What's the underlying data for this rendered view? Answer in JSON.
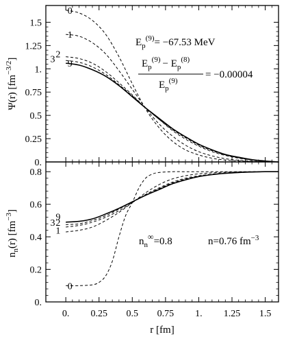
{
  "chart_data": [
    {
      "type": "line",
      "panel": "top",
      "ylabel": "Ψ(r)  [fm",
      "ylabel_exp": "−3/2",
      "ylabel_close": "]",
      "xlim": [
        -0.15,
        1.6
      ],
      "ylim": [
        0,
        1.68
      ],
      "grid": false,
      "yticks": [
        0,
        0.25,
        0.5,
        0.75,
        1.0,
        1.25,
        1.5
      ],
      "ytick_labels": [
        "0.",
        "0.25",
        "0.5",
        "0.75",
        "1.",
        "1.25",
        "1.5"
      ],
      "series": [
        {
          "name": "0",
          "style": "dashed",
          "x": [
            0,
            0.1,
            0.2,
            0.3,
            0.4,
            0.5,
            0.6,
            0.7,
            0.8,
            0.9,
            1.0,
            1.1,
            1.2,
            1.3,
            1.4,
            1.5,
            1.6
          ],
          "values": [
            1.63,
            1.6,
            1.52,
            1.37,
            1.13,
            0.84,
            0.57,
            0.37,
            0.225,
            0.13,
            0.075,
            0.04,
            0.02,
            0.01,
            0.005,
            0.002,
            0
          ]
        },
        {
          "name": "1",
          "style": "dashed",
          "x": [
            0,
            0.1,
            0.2,
            0.3,
            0.4,
            0.5,
            0.6,
            0.7,
            0.8,
            0.9,
            1.0,
            1.1,
            1.2,
            1.3,
            1.4,
            1.5,
            1.6
          ],
          "values": [
            1.37,
            1.35,
            1.28,
            1.16,
            0.98,
            0.78,
            0.58,
            0.41,
            0.28,
            0.18,
            0.11,
            0.065,
            0.035,
            0.018,
            0.008,
            0.003,
            0
          ]
        },
        {
          "name": "2",
          "style": "dashed",
          "x": [
            0,
            0.1,
            0.2,
            0.3,
            0.4,
            0.5,
            0.6,
            0.7,
            0.8,
            0.9,
            1.0,
            1.1,
            1.2,
            1.3,
            1.4,
            1.5,
            1.6
          ],
          "values": [
            1.13,
            1.11,
            1.06,
            0.97,
            0.85,
            0.72,
            0.58,
            0.46,
            0.34,
            0.245,
            0.17,
            0.11,
            0.07,
            0.04,
            0.02,
            0.008,
            0
          ]
        },
        {
          "name": "3",
          "style": "dashed",
          "x": [
            0,
            0.1,
            0.2,
            0.3,
            0.4,
            0.5,
            0.6,
            0.7,
            0.8,
            0.9,
            1.0,
            1.1,
            1.2,
            1.3,
            1.4,
            1.5,
            1.6
          ],
          "values": [
            1.09,
            1.07,
            1.02,
            0.94,
            0.83,
            0.71,
            0.58,
            0.46,
            0.35,
            0.26,
            0.18,
            0.12,
            0.075,
            0.045,
            0.022,
            0.009,
            0
          ]
        },
        {
          "name": "9",
          "style": "solid",
          "x": [
            0,
            0.1,
            0.2,
            0.3,
            0.4,
            0.5,
            0.6,
            0.7,
            0.8,
            0.9,
            1.0,
            1.1,
            1.2,
            1.3,
            1.4,
            1.5,
            1.6
          ],
          "values": [
            1.06,
            1.04,
            0.99,
            0.92,
            0.82,
            0.7,
            0.58,
            0.47,
            0.36,
            0.27,
            0.19,
            0.13,
            0.08,
            0.05,
            0.025,
            0.01,
            0
          ]
        }
      ],
      "curve_labels": [
        {
          "text": "0",
          "series": "0"
        },
        {
          "text": "1",
          "series": "1"
        },
        {
          "text": "2",
          "series": "2"
        },
        {
          "text": "3",
          "series": "3"
        },
        {
          "text": "9",
          "series": "9"
        }
      ]
    },
    {
      "type": "line",
      "panel": "bottom",
      "xlabel": "r  [fm]",
      "ylabel": "n",
      "ylabel_sub": "n",
      "ylabel_rest": "(r)  [fm",
      "ylabel_exp": "−3",
      "ylabel_close": "]",
      "xlim": [
        -0.15,
        1.6
      ],
      "ylim": [
        0,
        0.86
      ],
      "grid": false,
      "xticks": [
        0,
        0.25,
        0.5,
        0.75,
        1.0,
        1.25,
        1.5
      ],
      "xtick_labels": [
        "0.",
        "0.25",
        "0.5",
        "0.75",
        "1.",
        "1.25",
        "1.5"
      ],
      "yticks": [
        0,
        0.2,
        0.4,
        0.6,
        0.8
      ],
      "ytick_labels": [
        "0.",
        "0.2",
        "0.4",
        "0.6",
        "0.8"
      ],
      "series": [
        {
          "name": "0",
          "style": "dashed",
          "x": [
            0,
            0.1,
            0.2,
            0.25,
            0.3,
            0.35,
            0.4,
            0.45,
            0.5,
            0.55,
            0.6,
            0.65,
            0.7,
            0.8,
            0.9,
            1.0,
            1.2,
            1.4,
            1.6
          ],
          "values": [
            0.1,
            0.1,
            0.105,
            0.12,
            0.16,
            0.25,
            0.4,
            0.53,
            0.61,
            0.7,
            0.76,
            0.785,
            0.795,
            0.8,
            0.8,
            0.8,
            0.8,
            0.8,
            0.8
          ]
        },
        {
          "name": "1",
          "style": "dashed",
          "x": [
            0,
            0.1,
            0.2,
            0.3,
            0.4,
            0.5,
            0.6,
            0.7,
            0.8,
            0.9,
            1.0,
            1.1,
            1.2,
            1.3,
            1.4,
            1.5,
            1.6
          ],
          "values": [
            0.43,
            0.44,
            0.46,
            0.5,
            0.55,
            0.61,
            0.67,
            0.72,
            0.755,
            0.775,
            0.787,
            0.793,
            0.797,
            0.799,
            0.8,
            0.8,
            0.8
          ]
        },
        {
          "name": "2",
          "style": "dashed",
          "x": [
            0,
            0.1,
            0.2,
            0.3,
            0.4,
            0.5,
            0.6,
            0.7,
            0.8,
            0.9,
            1.0,
            1.1,
            1.2,
            1.3,
            1.4,
            1.5,
            1.6
          ],
          "values": [
            0.46,
            0.47,
            0.49,
            0.52,
            0.56,
            0.61,
            0.66,
            0.7,
            0.735,
            0.76,
            0.775,
            0.785,
            0.792,
            0.796,
            0.798,
            0.8,
            0.8
          ]
        },
        {
          "name": "3",
          "style": "dashed",
          "x": [
            0,
            0.1,
            0.2,
            0.3,
            0.4,
            0.5,
            0.6,
            0.7,
            0.8,
            0.9,
            1.0,
            1.1,
            1.2,
            1.3,
            1.4,
            1.5,
            1.6
          ],
          "values": [
            0.475,
            0.48,
            0.5,
            0.53,
            0.57,
            0.615,
            0.655,
            0.695,
            0.73,
            0.755,
            0.772,
            0.783,
            0.79,
            0.795,
            0.798,
            0.8,
            0.8
          ]
        },
        {
          "name": "9",
          "style": "solid",
          "x": [
            0,
            0.1,
            0.2,
            0.3,
            0.4,
            0.5,
            0.6,
            0.7,
            0.8,
            0.9,
            1.0,
            1.1,
            1.2,
            1.3,
            1.4,
            1.5,
            1.6
          ],
          "values": [
            0.49,
            0.495,
            0.51,
            0.54,
            0.575,
            0.615,
            0.655,
            0.69,
            0.725,
            0.75,
            0.77,
            0.782,
            0.79,
            0.795,
            0.798,
            0.8,
            0.8
          ]
        }
      ],
      "curve_labels": [
        {
          "text": "9",
          "series": "9"
        },
        {
          "text": "3",
          "series": "3"
        },
        {
          "text": "2",
          "series": "2"
        },
        {
          "text": "1",
          "series": "1"
        },
        {
          "text": "0",
          "series": "0"
        }
      ]
    }
  ],
  "annotations": {
    "ep_prefix": "E",
    "ep_sub": "p",
    "ep_sup": "(9)",
    "ep_value": "= −67.53 MeV",
    "conv_num_a": "E",
    "conv_num_a_sub": "p",
    "conv_num_a_sup": "(9)",
    "conv_minus": "− E",
    "conv_num_b_sub": "p",
    "conv_num_b_sup": "(8)",
    "conv_den": "E",
    "conv_den_sub": "p",
    "conv_den_sup": "(9)",
    "conv_value": "= −0.00004",
    "ninf_main": "n",
    "ninf_sub": "n",
    "ninf_sup": "∞",
    "ninf_value": "=0.8",
    "n_text": "n=0.76 fm",
    "n_sup": "−3"
  }
}
